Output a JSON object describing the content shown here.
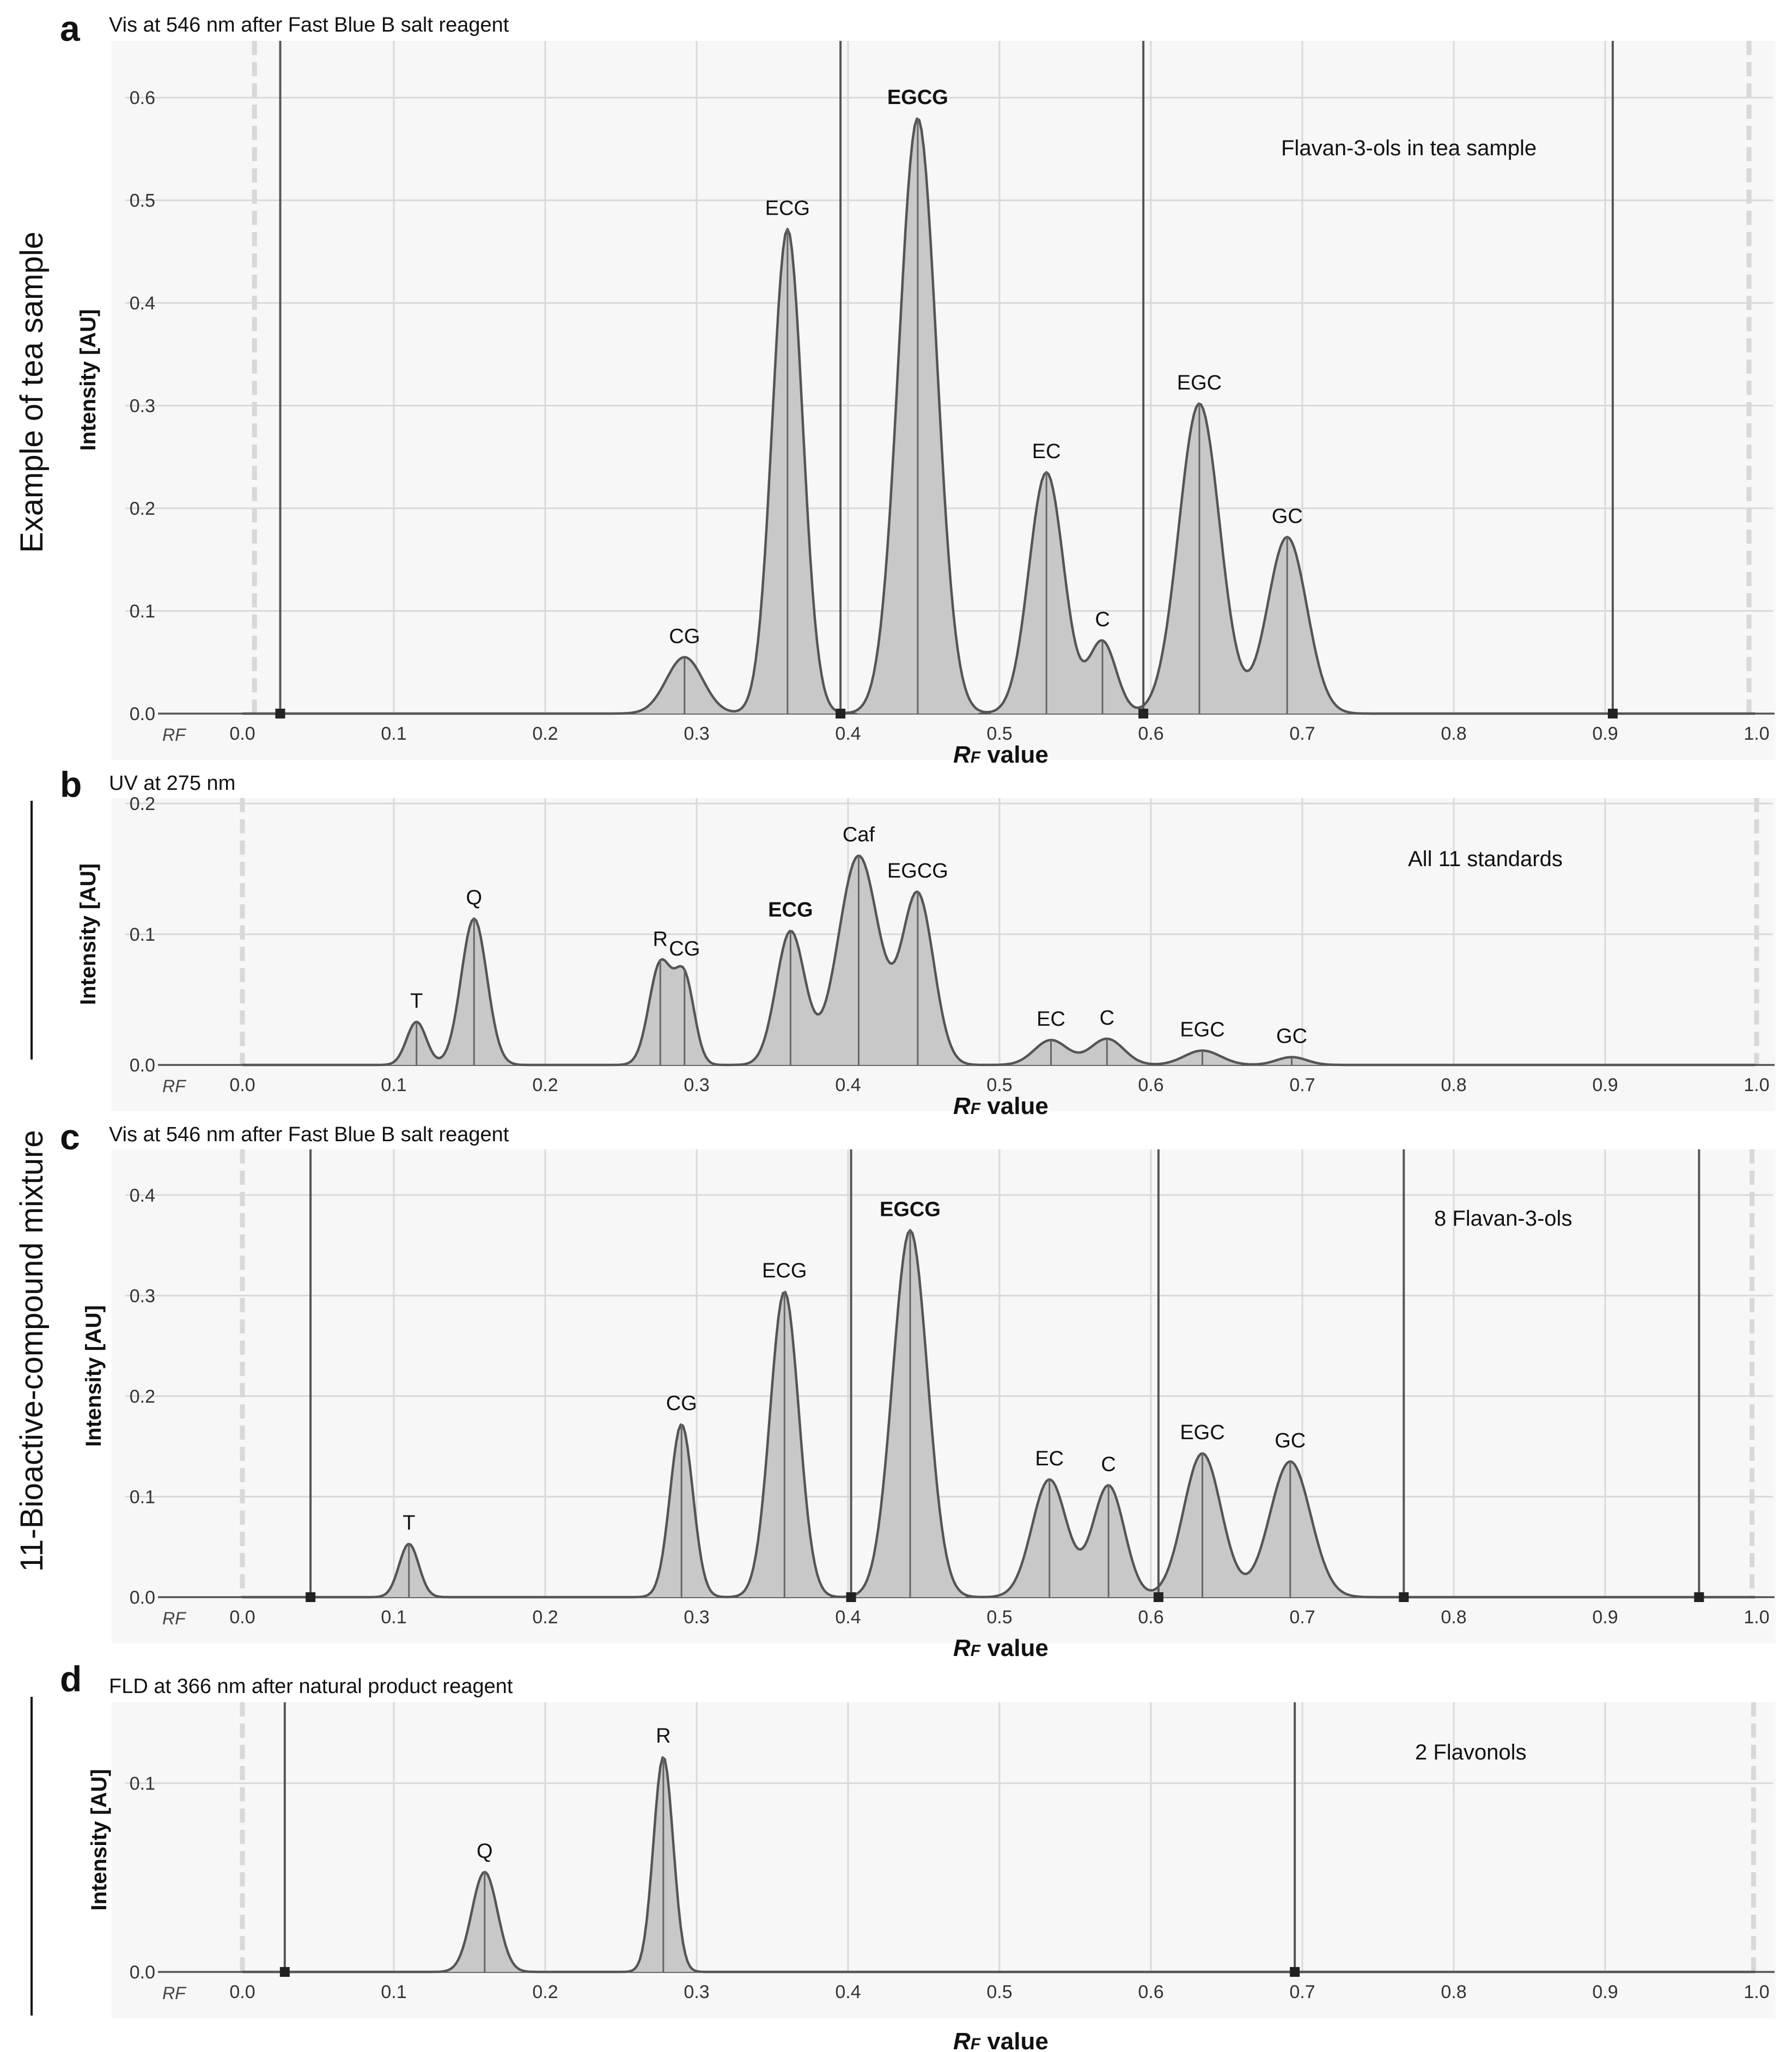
{
  "figure": {
    "side_labels": [
      "Example of tea sample",
      "11-Bioactive-compound mixture"
    ]
  },
  "chart_data": [
    {
      "type": "line",
      "panel": "a",
      "title": "Vis at 546 nm after Fast Blue B salt reagent",
      "annotation": "Flavan-3-ols in tea sample",
      "xlabel": "RF value",
      "x_axis_prefix": "RF",
      "ylabel": "Intensity [AU]",
      "xlim": [
        0,
        1.0
      ],
      "ylim": [
        0,
        0.65
      ],
      "xticks": [
        0.0,
        0.1,
        0.2,
        0.3,
        0.4,
        0.5,
        0.6,
        0.7,
        0.8,
        0.9,
        1.0
      ],
      "xtick_labels": [
        "0.0",
        "0.1",
        "0.2",
        "0.3",
        "0.4",
        "0.5",
        "0.6",
        "0.7",
        "0.8",
        "0.9",
        "1.0"
      ],
      "yticks": [
        0.0,
        0.1,
        0.2,
        0.3,
        0.4,
        0.5,
        0.6
      ],
      "ytick_labels": [
        "0.0",
        "0.1",
        "0.2",
        "0.3",
        "0.4",
        "0.5",
        "0.6"
      ],
      "peaks": [
        {
          "label": "CG",
          "rf": 0.292,
          "height": 0.055,
          "width": 0.012,
          "bold": false
        },
        {
          "label": "ECG",
          "rf": 0.36,
          "height": 0.472,
          "width": 0.01,
          "bold": false
        },
        {
          "label": "EGCG",
          "rf": 0.446,
          "height": 0.58,
          "width": 0.0125,
          "bold": true
        },
        {
          "label": "EC",
          "rf": 0.531,
          "height": 0.235,
          "width": 0.0115,
          "bold": false
        },
        {
          "label": "C",
          "rf": 0.568,
          "height": 0.07,
          "width": 0.009,
          "bold": false
        },
        {
          "label": "EGC",
          "rf": 0.632,
          "height": 0.302,
          "width": 0.0135,
          "bold": false
        },
        {
          "label": "GC",
          "rf": 0.69,
          "height": 0.172,
          "width": 0.013,
          "bold": false
        }
      ],
      "boundaries": [
        0.025,
        0.395,
        0.595,
        0.905
      ],
      "solvent_front": [
        0.008,
        0.995
      ]
    },
    {
      "type": "line",
      "panel": "b",
      "title": "UV at 275 nm",
      "annotation": "All 11 standards",
      "xlabel": "RF value",
      "x_axis_prefix": "RF",
      "ylabel": "Intensity [AU]",
      "xlim": [
        0,
        1.0
      ],
      "ylim": [
        0,
        0.2
      ],
      "xticks": [
        0.0,
        0.1,
        0.2,
        0.3,
        0.4,
        0.5,
        0.6,
        0.7,
        0.8,
        0.9,
        1.0
      ],
      "xtick_labels": [
        "0.0",
        "0.1",
        "0.2",
        "0.3",
        "0.4",
        "0.5",
        "0.6",
        "0.7",
        "0.8",
        "0.9",
        "1.0"
      ],
      "yticks": [
        0.0,
        0.1,
        0.2
      ],
      "ytick_labels": [
        "0.0",
        "0.1",
        "0.2"
      ],
      "peaks": [
        {
          "label": "T",
          "rf": 0.115,
          "height": 0.033,
          "width": 0.0065,
          "bold": false
        },
        {
          "label": "Q",
          "rf": 0.153,
          "height": 0.112,
          "width": 0.0085,
          "bold": false
        },
        {
          "label": "R",
          "rf": 0.276,
          "height": 0.077,
          "width": 0.0075,
          "bold": false
        },
        {
          "label": "CG",
          "rf": 0.292,
          "height": 0.065,
          "width": 0.0065,
          "bold": false
        },
        {
          "label": "ECG",
          "rf": 0.362,
          "height": 0.102,
          "width": 0.0095,
          "bold": true
        },
        {
          "label": "Caf",
          "rf": 0.407,
          "height": 0.16,
          "width": 0.0135,
          "bold": false
        },
        {
          "label": "EGCG",
          "rf": 0.446,
          "height": 0.13,
          "width": 0.0105,
          "bold": false
        },
        {
          "label": "EC",
          "rf": 0.534,
          "height": 0.019,
          "width": 0.011,
          "bold": false
        },
        {
          "label": "C",
          "rf": 0.571,
          "height": 0.02,
          "width": 0.011,
          "bold": false
        },
        {
          "label": "EGC",
          "rf": 0.634,
          "height": 0.011,
          "width": 0.012,
          "bold": false
        },
        {
          "label": "GC",
          "rf": 0.693,
          "height": 0.006,
          "width": 0.01,
          "bold": false
        }
      ],
      "boundaries": [],
      "solvent_front": [
        0.0,
        1.0
      ]
    },
    {
      "type": "line",
      "panel": "c",
      "title": "Vis at 546 nm after Fast Blue B salt reagent",
      "annotation": "8 Flavan-3-ols",
      "xlabel": "RF value",
      "x_axis_prefix": "RF",
      "ylabel": "Intensity [AU]",
      "xlim": [
        0,
        1.0
      ],
      "ylim": [
        0,
        0.44
      ],
      "xticks": [
        0.0,
        0.1,
        0.2,
        0.3,
        0.4,
        0.5,
        0.6,
        0.7,
        0.8,
        0.9,
        1.0
      ],
      "xtick_labels": [
        "0.0",
        "0.1",
        "0.2",
        "0.3",
        "0.4",
        "0.5",
        "0.6",
        "0.7",
        "0.8",
        "0.9",
        "1.0"
      ],
      "yticks": [
        0.0,
        0.1,
        0.2,
        0.3,
        0.4
      ],
      "ytick_labels": [
        "0.0",
        "0.1",
        "0.2",
        "0.3",
        "0.4"
      ],
      "peaks": [
        {
          "label": "T",
          "rf": 0.11,
          "height": 0.053,
          "width": 0.0065,
          "bold": false
        },
        {
          "label": "CG",
          "rf": 0.29,
          "height": 0.172,
          "width": 0.0075,
          "bold": false
        },
        {
          "label": "ECG",
          "rf": 0.358,
          "height": 0.304,
          "width": 0.0095,
          "bold": false
        },
        {
          "label": "EGCG",
          "rf": 0.441,
          "height": 0.365,
          "width": 0.0115,
          "bold": true
        },
        {
          "label": "EC",
          "rf": 0.533,
          "height": 0.117,
          "width": 0.0115,
          "bold": false
        },
        {
          "label": "C",
          "rf": 0.572,
          "height": 0.111,
          "width": 0.0105,
          "bold": false
        },
        {
          "label": "EGC",
          "rf": 0.634,
          "height": 0.143,
          "width": 0.0125,
          "bold": false
        },
        {
          "label": "GC",
          "rf": 0.692,
          "height": 0.135,
          "width": 0.0135,
          "bold": false
        }
      ],
      "boundaries": [
        0.045,
        0.402,
        0.605,
        0.767,
        0.962
      ],
      "solvent_front": [
        0.0,
        0.997
      ]
    },
    {
      "type": "line",
      "panel": "d",
      "title": "FLD at 366 nm after natural product reagent",
      "annotation": "2 Flavonols",
      "xlabel": "RF value",
      "x_axis_prefix": "RF",
      "ylabel": "Intensity [AU]",
      "xlim": [
        0,
        1.0
      ],
      "ylim": [
        0,
        0.14
      ],
      "xticks": [
        0.0,
        0.1,
        0.2,
        0.3,
        0.4,
        0.5,
        0.6,
        0.7,
        0.8,
        0.9,
        1.0
      ],
      "xtick_labels": [
        "0.0",
        "0.1",
        "0.2",
        "0.3",
        "0.4",
        "0.5",
        "0.6",
        "0.7",
        "0.8",
        "0.9",
        "1.0"
      ],
      "yticks": [
        0.0,
        0.1
      ],
      "ytick_labels": [
        "0.0",
        "0.1"
      ],
      "peaks": [
        {
          "label": "Q",
          "rf": 0.16,
          "height": 0.053,
          "width": 0.0085,
          "bold": false
        },
        {
          "label": "R",
          "rf": 0.278,
          "height": 0.114,
          "width": 0.0065,
          "bold": false
        }
      ],
      "boundaries": [
        0.028,
        0.695
      ],
      "solvent_front": [
        0.0,
        0.998
      ]
    }
  ]
}
